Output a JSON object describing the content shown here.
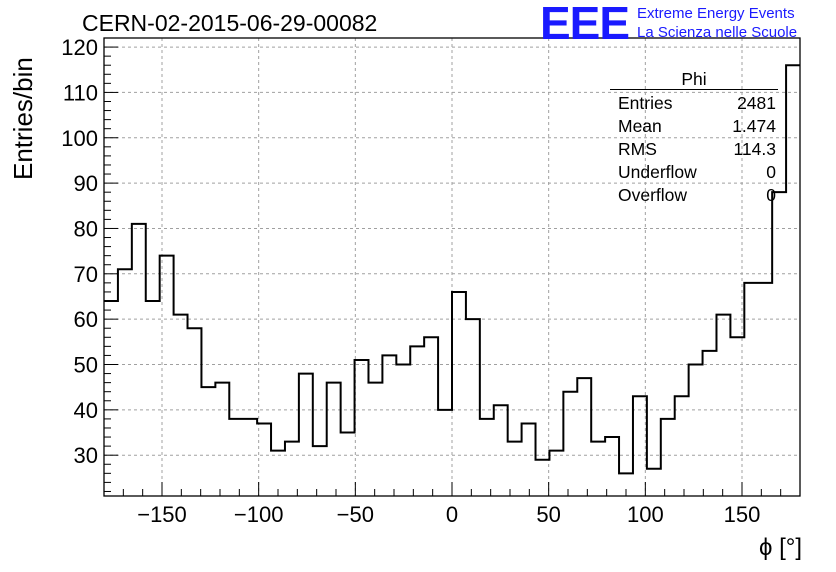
{
  "title": "CERN-02-2015-06-29-00082",
  "logo": {
    "mark": "EEE",
    "line1": "Extreme Energy Events",
    "line2": "La Scienza nelle Scuole"
  },
  "stats": {
    "name": "Phi",
    "rows": [
      {
        "label": "Entries",
        "value": "2481"
      },
      {
        "label": "Mean",
        "value": "1.474"
      },
      {
        "label": "RMS",
        "value": "114.3"
      },
      {
        "label": "Underflow",
        "value": "0"
      },
      {
        "label": "Overflow",
        "value": "0"
      }
    ]
  },
  "chart_data": {
    "type": "bar",
    "style": "step-histogram",
    "title": "CERN-02-2015-06-29-00082",
    "xlabel": "ϕ [°]",
    "ylabel": "Entries/bin",
    "xlim": [
      -180,
      180
    ],
    "ylim": [
      21,
      122
    ],
    "bin_width": 7.2,
    "xticks": [
      -150,
      -100,
      -50,
      0,
      50,
      100,
      150
    ],
    "xtick_labels": [
      "−150",
      "−100",
      "−50",
      "0",
      "50",
      "100",
      "150"
    ],
    "yticks": [
      30,
      40,
      50,
      60,
      70,
      80,
      90,
      100,
      110,
      120
    ],
    "grid": true,
    "legend": "stats box top-right",
    "values": [
      64,
      71,
      81,
      64,
      74,
      61,
      58,
      45,
      46,
      38,
      38,
      37,
      31,
      33,
      48,
      32,
      46,
      35,
      51,
      46,
      52,
      50,
      54,
      56,
      40,
      66,
      60,
      38,
      41,
      33,
      37,
      29,
      31,
      44,
      47,
      33,
      34,
      26,
      43,
      27,
      38,
      43,
      50,
      53,
      61,
      56,
      68,
      68,
      88,
      116
    ],
    "colors": {
      "line": "#000000",
      "grid": "#a0a0a0"
    }
  }
}
